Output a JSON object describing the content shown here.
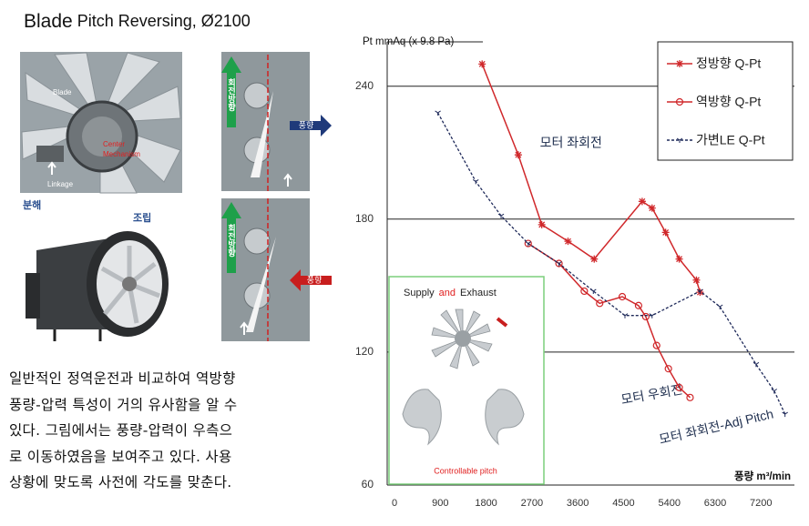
{
  "title_main": "Blade",
  "title_rest": "Pitch Reversing, Ø2100",
  "photo_labels": {
    "blade": "Blade",
    "center_1": "Center",
    "center_2": "Mechanism",
    "linkage": "Linkage",
    "disassembled": "분해",
    "assembled": "조립",
    "rotation_top": "회전방향",
    "rotation_bottom": "회전방향",
    "wind_top": "풍향",
    "wind_bottom": "풍향"
  },
  "body_lines": [
    "일반적인 정역운전과 비교하여 역방향",
    "풍량-압력 특성이 거의 유사함을 알 수",
    "있다. 그림에서는 풍량-압력이 우측으",
    "로 이동하였음을 보여주고 있다. 사용",
    "상황에 맞도록 사전에 각도를 맞춘다."
  ],
  "inset": {
    "supply": "Supply",
    "and": "and",
    "exhaust": "Exhaust",
    "caption": "Controllable pitch"
  },
  "chart_data": {
    "type": "line",
    "y_label": "Pt  mmAq (x 9.8 Pa)",
    "x_label": "풍량 m³/min",
    "xlim": [
      0,
      8000
    ],
    "ylim": [
      60,
      260
    ],
    "xticks": [
      0,
      900,
      1800,
      2700,
      3600,
      4500,
      5400,
      6300,
      7200
    ],
    "yticks": [
      60,
      120,
      180,
      240
    ],
    "grid": true,
    "legend": "upper right",
    "annotations": [
      {
        "text": "모터 좌회전",
        "x": 3000,
        "y": 214
      },
      {
        "text": "모터 우회전",
        "x": 4600,
        "y": 98
      },
      {
        "text": "모터 좌회전-Adj Pitch",
        "x": 5350,
        "y": 80
      }
    ],
    "series": [
      {
        "name": "정방향 Q-Pt",
        "color": "#d0282b",
        "marker": "star",
        "dashed": false,
        "x": [
          1865,
          2575,
          3037,
          3552,
          4067,
          5009,
          5204,
          5470,
          5737,
          6075,
          6146
        ],
        "values": [
          250,
          209,
          177.5,
          170,
          162,
          188,
          185,
          174,
          162,
          152.5,
          147
        ]
      },
      {
        "name": "역방향 Q-Pt",
        "color": "#d0282b",
        "marker": "circle",
        "dashed": false,
        "x": [
          2770,
          3375,
          3872,
          4174,
          4618,
          4938,
          5080,
          5293,
          5524,
          5737,
          5950
        ],
        "values": [
          169,
          160,
          147.5,
          142,
          145,
          141,
          136,
          123,
          112.5,
          104,
          99.5
        ]
      },
      {
        "name": "가변LE Q-Pt",
        "color": "#1f2a5a",
        "marker": "tick",
        "dashed": true,
        "x": [
          995,
          1740,
          2238,
          2770,
          3375,
          4050,
          4671,
          5204,
          6146,
          6536,
          7247,
          7602,
          7815
        ],
        "values": [
          228,
          197,
          181.5,
          169,
          160,
          147.5,
          136.5,
          136.5,
          147.5,
          140.5,
          114.5,
          102.5,
          92
        ]
      }
    ]
  }
}
